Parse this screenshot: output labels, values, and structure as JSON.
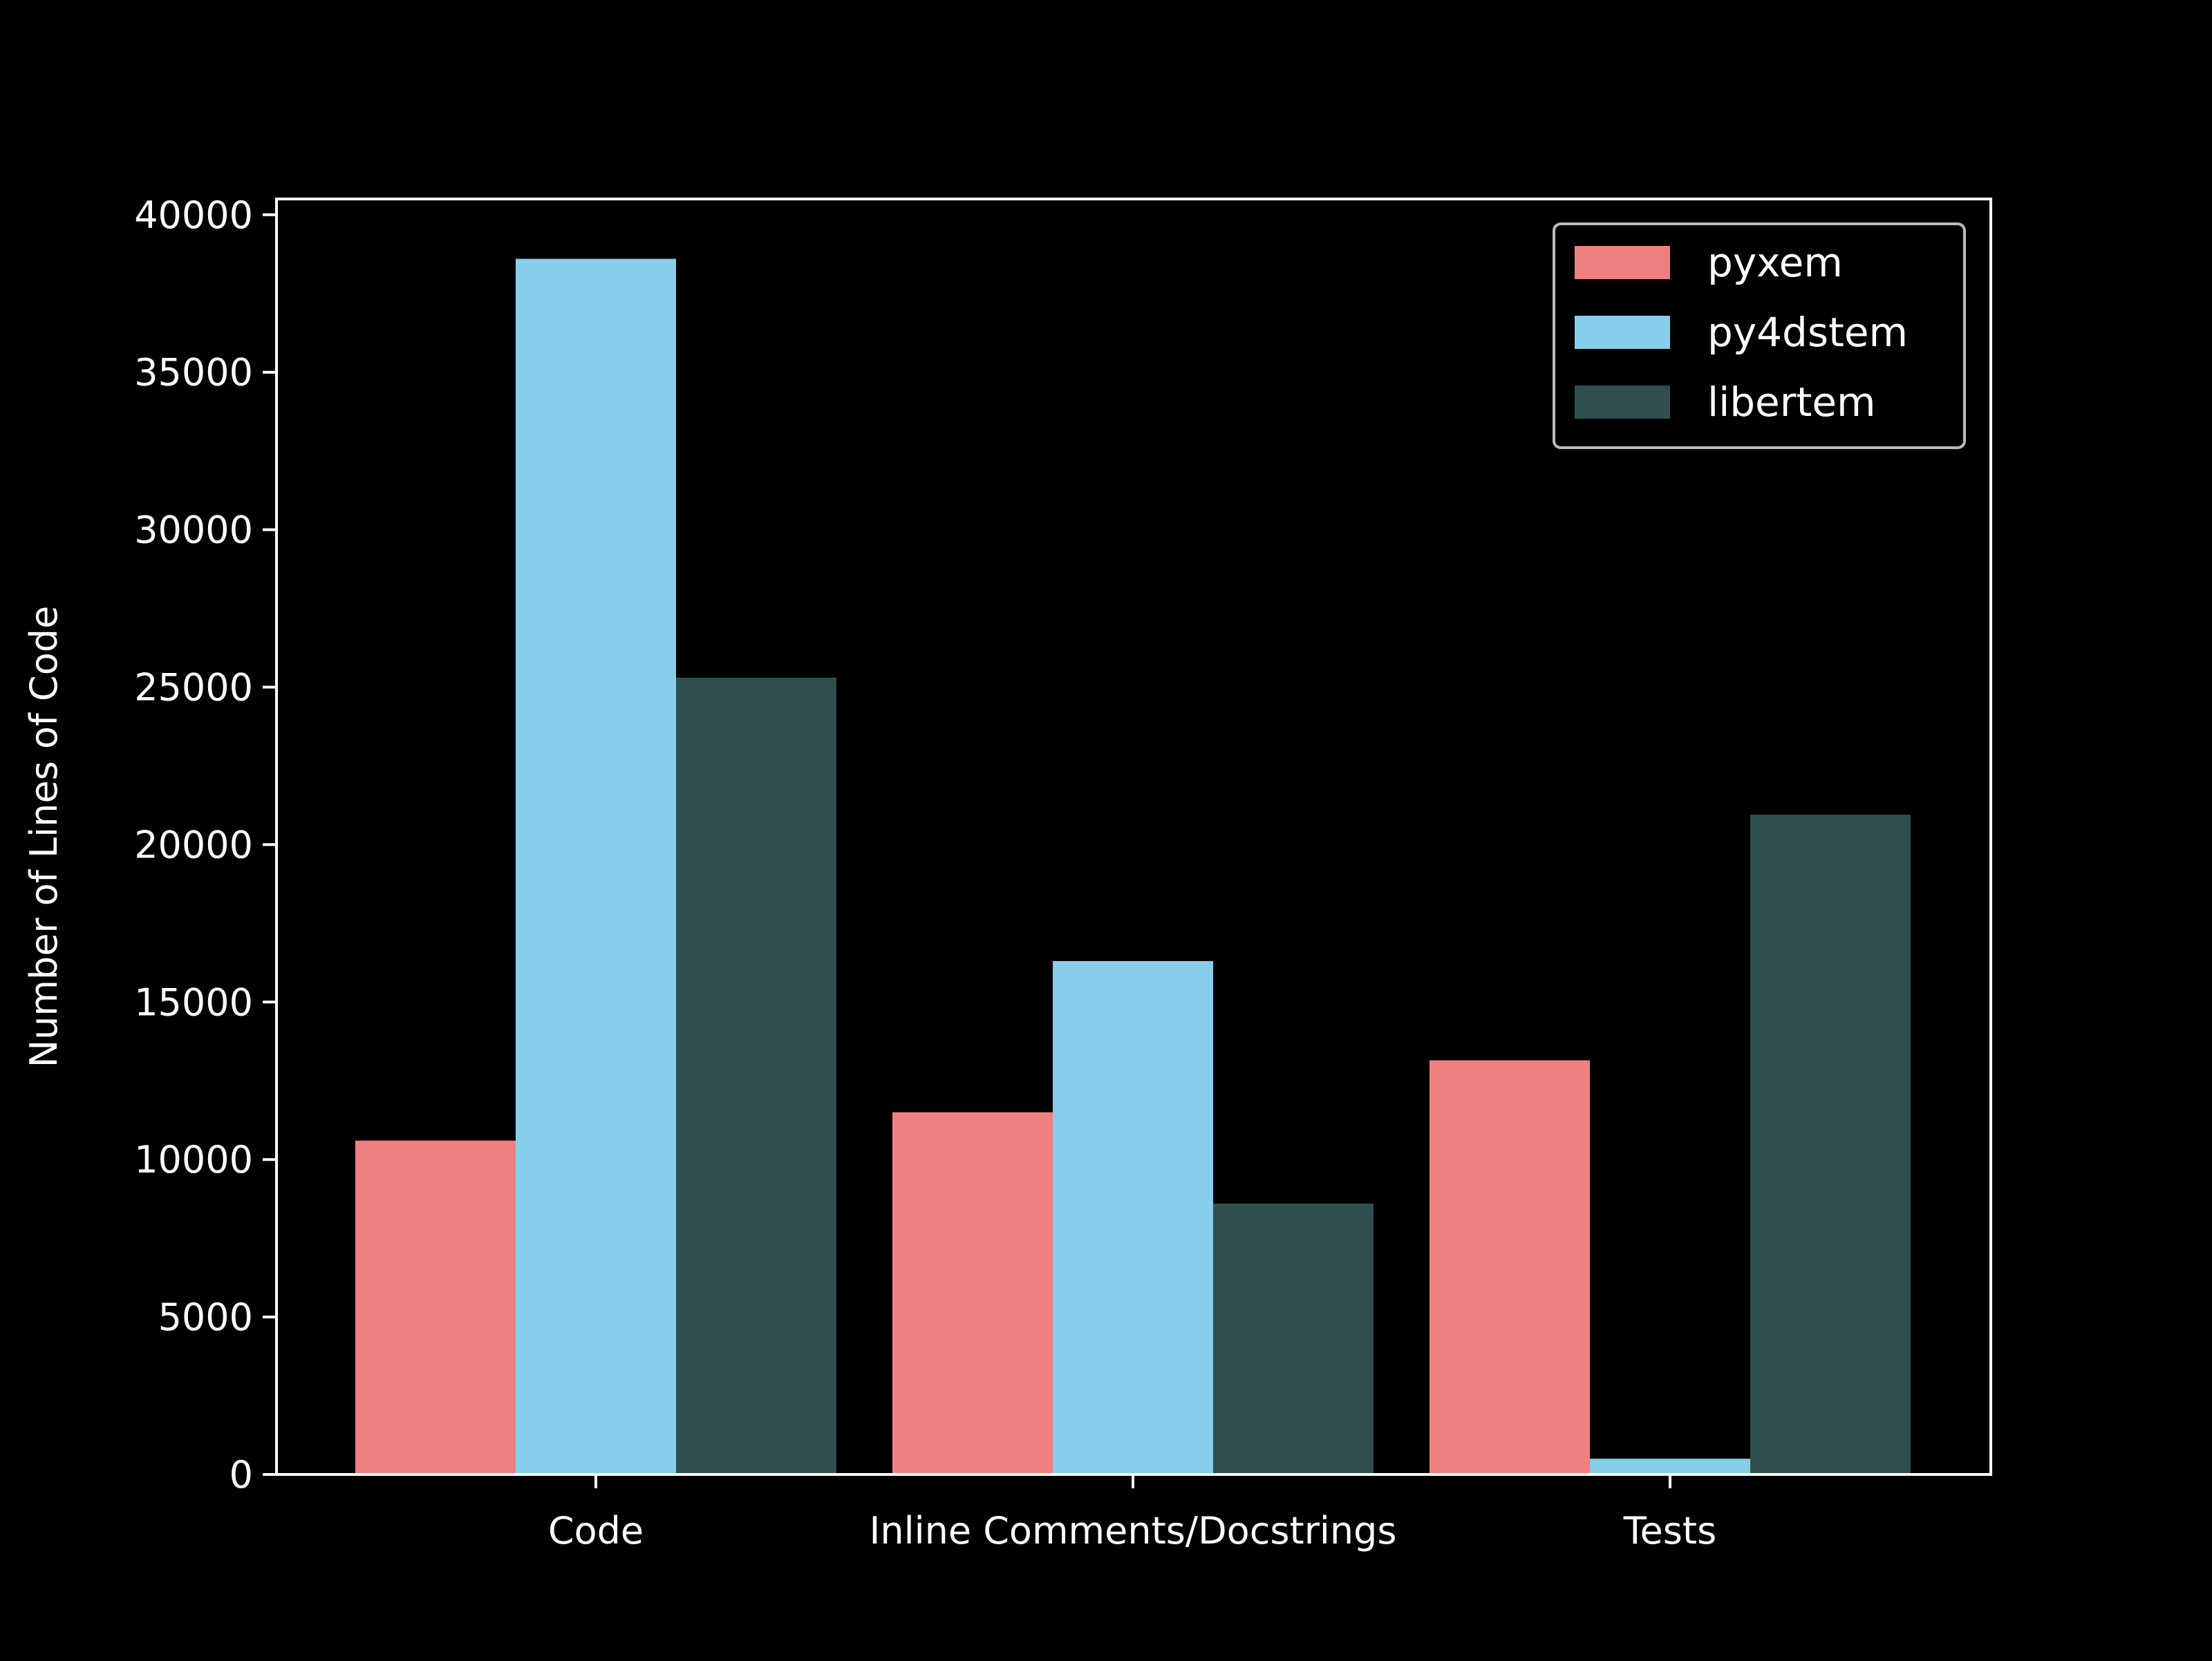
{
  "chart_data": {
    "type": "bar",
    "title": "",
    "xlabel": "",
    "ylabel": "Number of Lines of Code",
    "categories": [
      "Code",
      "Inline Comments/Docstrings",
      "Tests"
    ],
    "series": [
      {
        "name": "pyxem",
        "color": "#f08080",
        "values": [
          10600,
          11500,
          13150
        ]
      },
      {
        "name": "py4dstem",
        "color": "#87ceeb",
        "values": [
          38600,
          16300,
          500
        ]
      },
      {
        "name": "libertem",
        "color": "#2f4f4f",
        "values": [
          25300,
          8600,
          20950
        ]
      }
    ],
    "ylim": [
      0,
      40500
    ],
    "yticks": [
      0,
      5000,
      10000,
      15000,
      20000,
      25000,
      30000,
      35000,
      40000
    ],
    "legend_position": "top-right",
    "grid": false,
    "background_color": "#000000",
    "axis_color": "#ffffff"
  }
}
